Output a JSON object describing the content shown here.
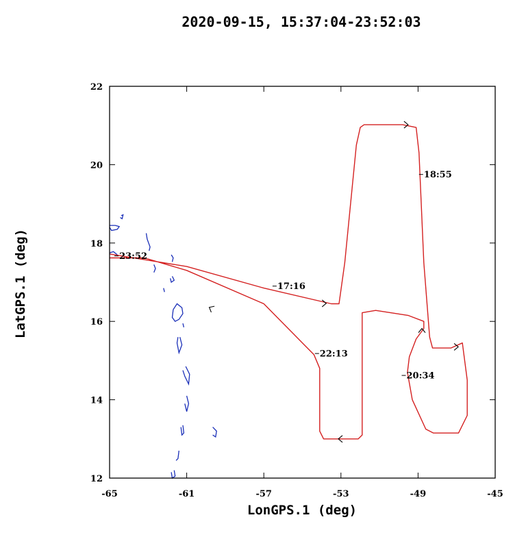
{
  "chart_data": {
    "type": "line",
    "title": "2020-09-15, 15:37:04-23:52:03",
    "xlabel": "LonGPS.1 (deg)",
    "ylabel": "LatGPS.1 (deg)",
    "xlim": [
      -65,
      -45
    ],
    "ylim": [
      12,
      22
    ],
    "x_ticks": [
      -65,
      -61,
      -57,
      -53,
      -49,
      -45
    ],
    "y_ticks": [
      12,
      14,
      16,
      18,
      20,
      22
    ],
    "colors": {
      "track": "#d42020",
      "coast": "#1a2fb8",
      "axes": "#000000"
    },
    "series": [
      {
        "values": [
          [
            -65.0,
            17.72
          ],
          [
            -61.0,
            17.4
          ],
          [
            -57.0,
            16.85
          ],
          [
            -53.5,
            16.45
          ],
          [
            -53.1,
            16.45
          ],
          [
            -52.8,
            17.5
          ],
          [
            -52.2,
            20.5
          ],
          [
            -52.0,
            20.95
          ],
          [
            -51.8,
            21.02
          ],
          [
            -49.8,
            21.02
          ],
          [
            -49.1,
            20.95
          ],
          [
            -48.95,
            20.3
          ],
          [
            -48.7,
            17.5
          ],
          [
            -48.4,
            15.6
          ],
          [
            -48.25,
            15.32
          ],
          [
            -47.3,
            15.32
          ],
          [
            -46.7,
            15.45
          ],
          [
            -46.45,
            14.5
          ],
          [
            -46.45,
            13.6
          ],
          [
            -46.9,
            13.15
          ],
          [
            -48.2,
            13.15
          ],
          [
            -48.6,
            13.25
          ],
          [
            -49.3,
            14.0
          ],
          [
            -49.55,
            14.7
          ],
          [
            -49.45,
            15.1
          ],
          [
            -49.1,
            15.55
          ],
          [
            -48.7,
            15.82
          ],
          [
            -48.7,
            16.0
          ],
          [
            -49.5,
            16.15
          ],
          [
            -51.2,
            16.28
          ],
          [
            -51.9,
            16.22
          ],
          [
            -51.9,
            13.1
          ],
          [
            -52.1,
            13.0
          ],
          [
            -53.9,
            13.0
          ],
          [
            -54.1,
            13.2
          ],
          [
            -54.1,
            14.8
          ],
          [
            -54.4,
            15.15
          ],
          [
            -57.0,
            16.45
          ],
          [
            -61.0,
            17.3
          ],
          [
            -63.2,
            17.62
          ],
          [
            -65.0,
            17.62
          ]
        ]
      }
    ],
    "time_labels": [
      {
        "text": "17:16",
        "x": -56.3,
        "y": 16.9
      },
      {
        "text": "18:55",
        "x": -48.7,
        "y": 19.75
      },
      {
        "text": "20:34",
        "x": -49.6,
        "y": 14.62
      },
      {
        "text": "22:13",
        "x": -54.1,
        "y": 15.18
      },
      {
        "text": "23:52",
        "x": -64.5,
        "y": 17.67
      }
    ],
    "direction_arrows": [
      {
        "x": -53.8,
        "y": 16.46,
        "dir": "right"
      },
      {
        "x": -49.55,
        "y": 21.02,
        "dir": "right"
      },
      {
        "x": -46.95,
        "y": 15.35,
        "dir": "right"
      },
      {
        "x": -48.8,
        "y": 15.8,
        "dir": "up"
      },
      {
        "x": -53.1,
        "y": 13.0,
        "dir": "left"
      },
      {
        "x": -59.8,
        "y": 16.35,
        "dir": "upleft"
      }
    ],
    "coastlines": [
      [
        [
          -65.0,
          18.45
        ],
        [
          -64.7,
          18.45
        ],
        [
          -64.5,
          18.42
        ],
        [
          -64.6,
          18.35
        ],
        [
          -64.9,
          18.32
        ],
        [
          -65.0,
          18.4
        ]
      ],
      [
        [
          -64.4,
          18.7
        ],
        [
          -64.3,
          18.72
        ],
        [
          -64.35,
          18.62
        ],
        [
          -64.45,
          18.65
        ]
      ],
      [
        [
          -65.0,
          17.75
        ],
        [
          -64.8,
          17.78
        ],
        [
          -64.6,
          17.7
        ]
      ],
      [
        [
          -63.1,
          18.25
        ],
        [
          -63.05,
          18.1
        ],
        [
          -62.9,
          17.9
        ],
        [
          -62.95,
          17.8
        ]
      ],
      [
        [
          -62.7,
          17.45
        ],
        [
          -62.62,
          17.35
        ],
        [
          -62.7,
          17.25
        ]
      ],
      [
        [
          -61.8,
          17.7
        ],
        [
          -61.7,
          17.62
        ],
        [
          -61.75,
          17.52
        ]
      ],
      [
        [
          -61.75,
          17.15
        ],
        [
          -61.65,
          17.05
        ],
        [
          -61.8,
          17.0
        ],
        [
          -61.85,
          17.1
        ]
      ],
      [
        [
          -62.2,
          16.85
        ],
        [
          -62.15,
          16.75
        ]
      ],
      [
        [
          -61.7,
          16.3
        ],
        [
          -61.5,
          16.45
        ],
        [
          -61.25,
          16.35
        ],
        [
          -61.2,
          16.2
        ],
        [
          -61.4,
          16.05
        ],
        [
          -61.6,
          16.0
        ],
        [
          -61.75,
          16.1
        ],
        [
          -61.7,
          16.3
        ]
      ],
      [
        [
          -61.2,
          15.95
        ],
        [
          -61.15,
          15.85
        ]
      ],
      [
        [
          -61.35,
          15.6
        ],
        [
          -61.25,
          15.4
        ],
        [
          -61.4,
          15.2
        ],
        [
          -61.5,
          15.45
        ],
        [
          -61.45,
          15.6
        ]
      ],
      [
        [
          -61.05,
          14.85
        ],
        [
          -60.85,
          14.65
        ],
        [
          -60.9,
          14.4
        ],
        [
          -61.1,
          14.6
        ],
        [
          -61.2,
          14.75
        ]
      ],
      [
        [
          -61.0,
          14.1
        ],
        [
          -60.9,
          13.9
        ],
        [
          -61.0,
          13.7
        ],
        [
          -61.1,
          13.9
        ]
      ],
      [
        [
          -61.2,
          13.35
        ],
        [
          -61.15,
          13.15
        ],
        [
          -61.25,
          13.1
        ],
        [
          -61.3,
          13.3
        ]
      ],
      [
        [
          -59.65,
          13.3
        ],
        [
          -59.45,
          13.2
        ],
        [
          -59.5,
          13.05
        ],
        [
          -59.65,
          13.1
        ]
      ],
      [
        [
          -61.4,
          12.7
        ],
        [
          -61.45,
          12.5
        ],
        [
          -61.55,
          12.45
        ]
      ],
      [
        [
          -61.65,
          12.2
        ],
        [
          -61.6,
          12.05
        ],
        [
          -61.75,
          12.0
        ],
        [
          -61.8,
          12.15
        ]
      ]
    ]
  }
}
